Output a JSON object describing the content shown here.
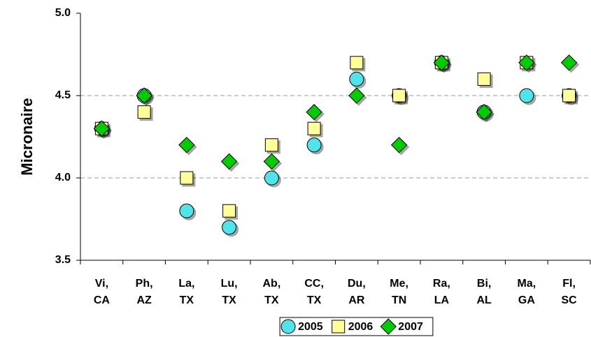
{
  "chart_data": {
    "type": "scatter",
    "y_label": "Micronaire",
    "categories": [
      "Vi, CA",
      "Ph, AZ",
      "La, TX",
      "Lu, TX",
      "Ab, TX",
      "CC, TX",
      "Du, AR",
      "Me, TN",
      "Ra, LA",
      "Bi, AL",
      "Ma, GA",
      "Fl, SC"
    ],
    "series": [
      {
        "name": "2005",
        "marker": "circle",
        "color": "#4fe3ea",
        "values": [
          4.3,
          4.5,
          3.8,
          3.7,
          4.0,
          4.2,
          4.6,
          4.5,
          4.7,
          4.4,
          4.5,
          4.5
        ]
      },
      {
        "name": "2006",
        "marker": "square",
        "color": "#ffff99",
        "values": [
          4.3,
          4.4,
          4.0,
          3.8,
          4.2,
          4.3,
          4.7,
          4.5,
          4.7,
          4.6,
          4.7,
          4.5
        ]
      },
      {
        "name": "2007",
        "marker": "diamond",
        "color": "#00cc00",
        "values": [
          4.3,
          4.5,
          4.2,
          4.1,
          4.1,
          4.4,
          4.5,
          4.2,
          4.7,
          4.4,
          4.7,
          4.7
        ]
      }
    ],
    "ylim": [
      3.5,
      5.0
    ],
    "yticks": [
      {
        "value": 3.5,
        "label": "3.5"
      },
      {
        "value": 4.0,
        "label": "4.0"
      },
      {
        "value": 4.5,
        "label": "4.5"
      },
      {
        "value": 5.0,
        "label": "5.0"
      }
    ],
    "grid": true,
    "legend": "bottom"
  }
}
